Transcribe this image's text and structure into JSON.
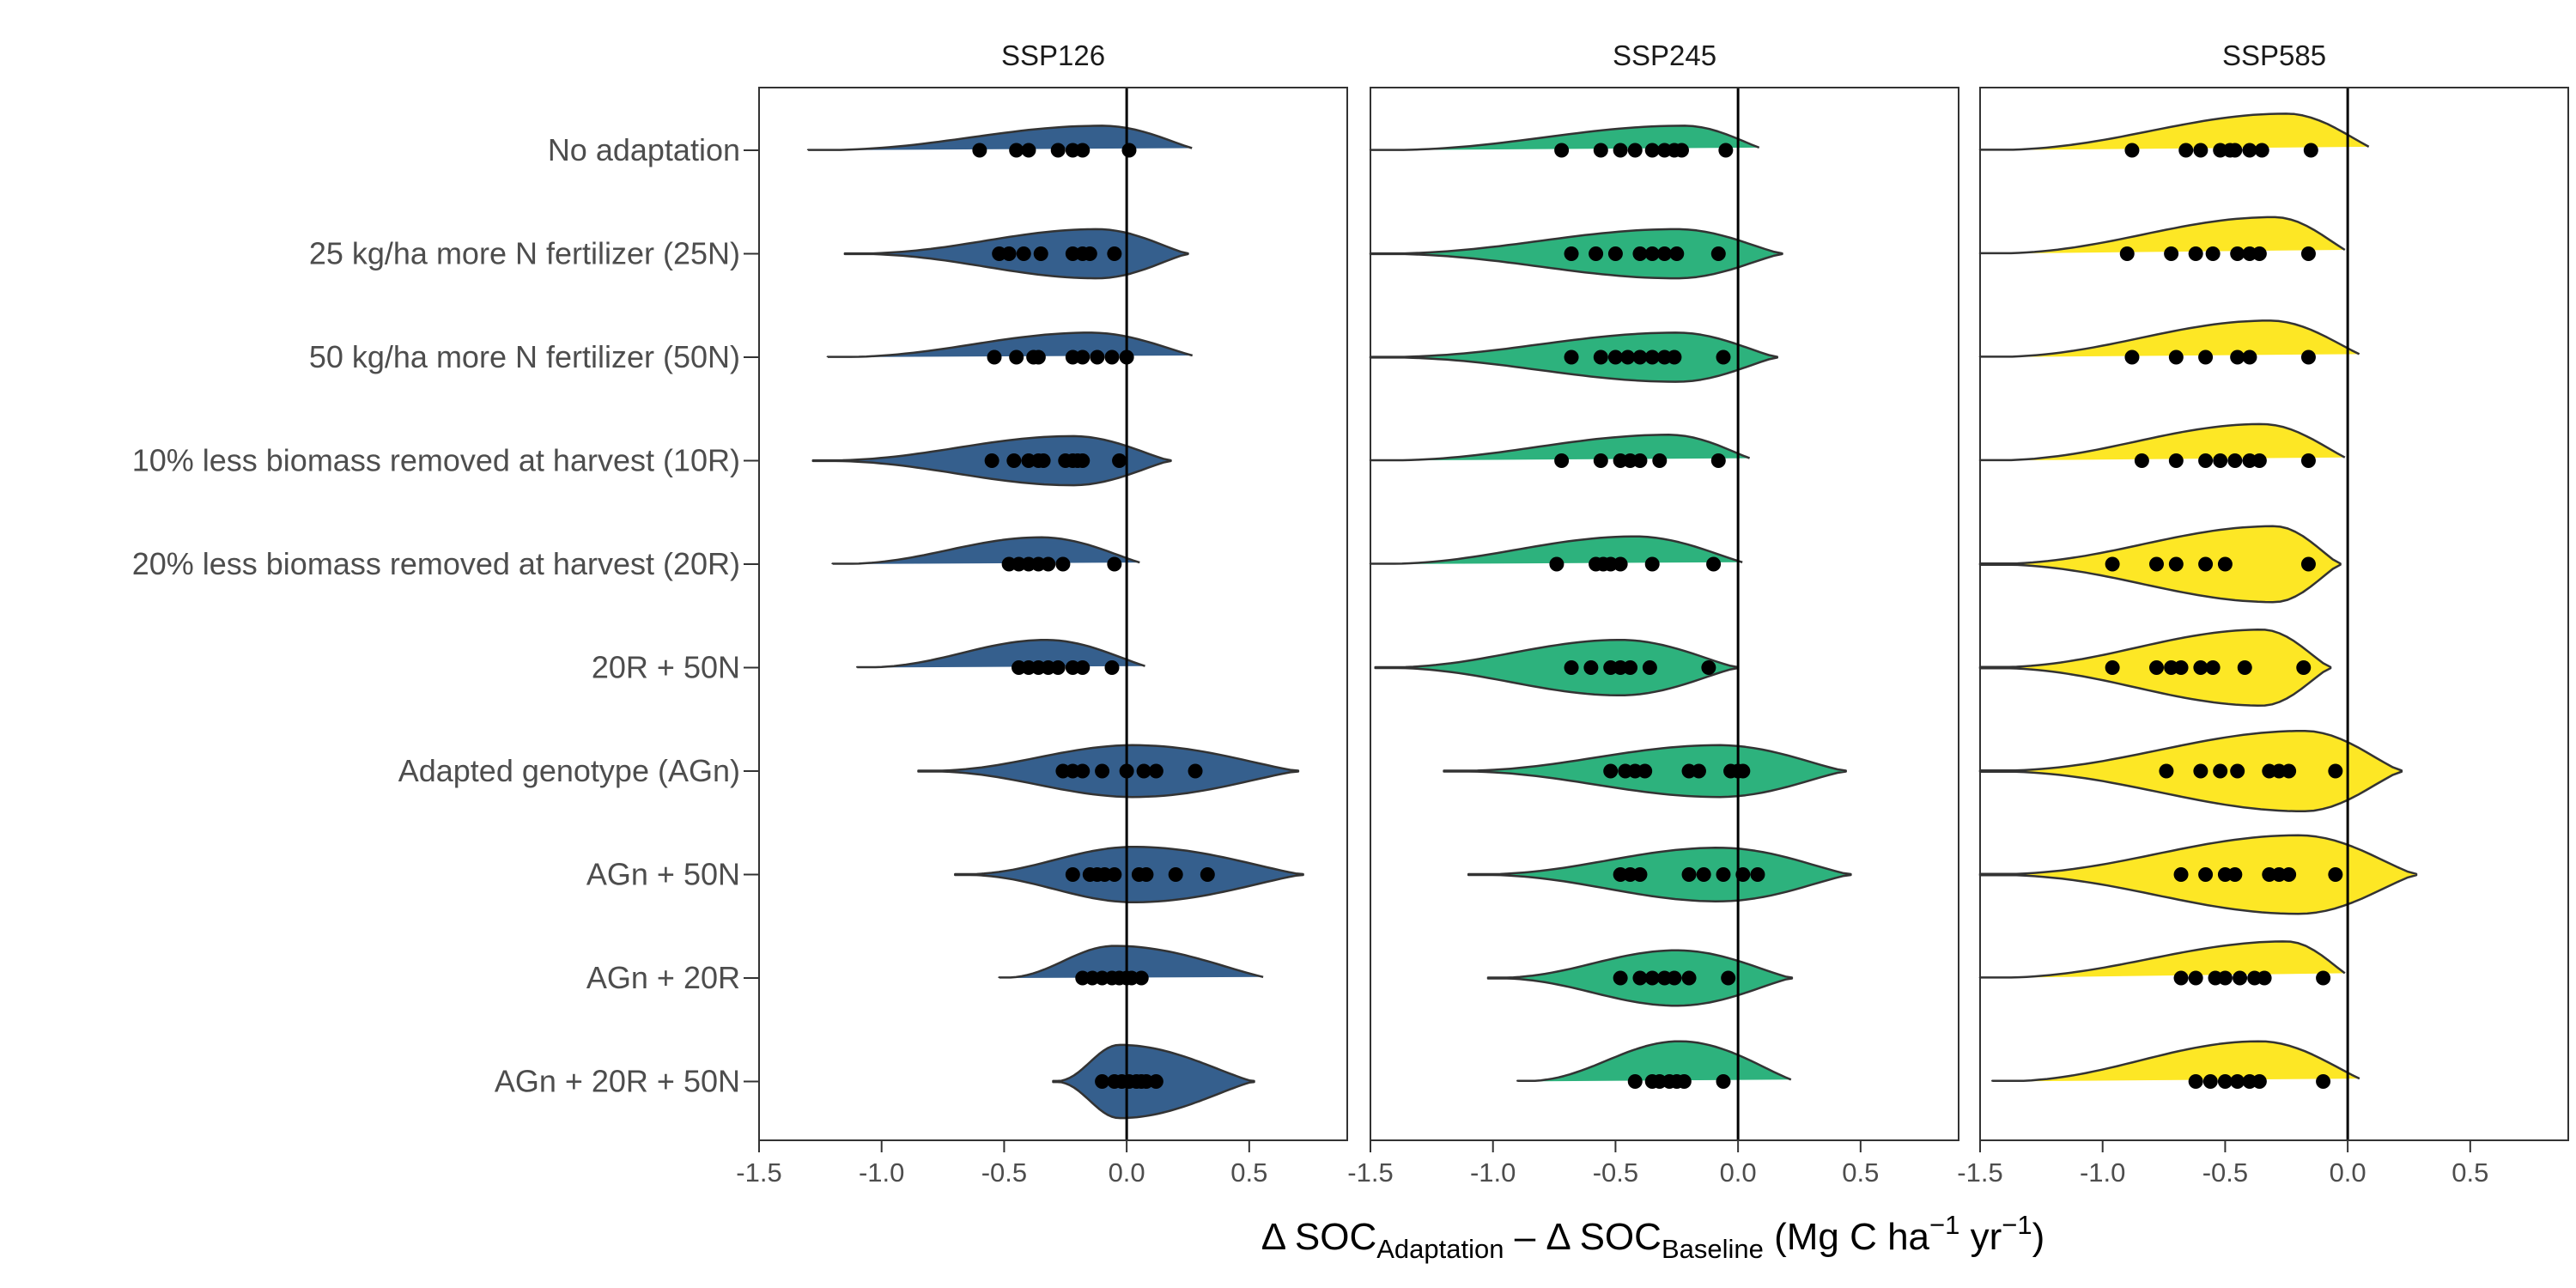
{
  "chart_data": {
    "type": "violin",
    "categories": [
      "No adaptation",
      "25 kg/ha more N fertilizer (25N)",
      "50 kg/ha more N fertilizer (50N)",
      "10% less biomass removed at harvest (10R)",
      "20% less biomass removed at harvest (20R)",
      "20R + 50N",
      "Adapted genotype (AGn)",
      "AGn + 50N",
      "AGn + 20R",
      "AGn + 20R + 50N"
    ],
    "xlim": [
      -1.5,
      0.9
    ],
    "x_ticks": [
      -1.5,
      -1.0,
      -0.5,
      0.0,
      0.5
    ],
    "x_tick_labels": [
      "-1.5",
      "-1.0",
      "-0.5",
      "0.0",
      "0.5"
    ],
    "reference_line_x": 0,
    "xlabel_parts": {
      "delta1": "Δ SOC",
      "sub1": "Adaptation",
      "minus": " – ",
      "delta2": "Δ SOC",
      "sub2": "Baseline",
      "units_open": " (Mg C ha",
      "sup1": "−1",
      "units_mid": " yr",
      "sup2": "−1",
      "units_close": ")"
    },
    "panels": [
      {
        "title": "SSP126",
        "color": "#355F8D",
        "violins": [
          {
            "min": -1.3,
            "max": 0.3,
            "mode": -0.1,
            "width": 0.55,
            "points": [
              -0.6,
              -0.45,
              -0.4,
              -0.28,
              -0.22,
              -0.18,
              0.01
            ]
          },
          {
            "min": -1.15,
            "max": 0.25,
            "mode": -0.12,
            "width": 0.55,
            "points": [
              -0.52,
              -0.48,
              -0.42,
              -0.35,
              -0.22,
              -0.18,
              -0.15,
              -0.05
            ]
          },
          {
            "min": -1.22,
            "max": 0.3,
            "mode": -0.15,
            "width": 0.55,
            "points": [
              -0.54,
              -0.45,
              -0.38,
              -0.36,
              -0.22,
              -0.18,
              -0.12,
              -0.06,
              0.0
            ]
          },
          {
            "min": -1.28,
            "max": 0.18,
            "mode": -0.22,
            "width": 0.55,
            "points": [
              -0.55,
              -0.46,
              -0.4,
              -0.36,
              -0.34,
              -0.25,
              -0.22,
              -0.2,
              -0.18,
              -0.03
            ]
          },
          {
            "min": -1.2,
            "max": 0.08,
            "mode": -0.35,
            "width": 0.6,
            "points": [
              -0.48,
              -0.44,
              -0.4,
              -0.36,
              -0.32,
              -0.26,
              -0.05
            ]
          },
          {
            "min": -1.1,
            "max": 0.1,
            "mode": -0.33,
            "width": 0.62,
            "points": [
              -0.44,
              -0.4,
              -0.36,
              -0.32,
              -0.28,
              -0.22,
              -0.18,
              -0.06
            ]
          },
          {
            "min": -0.85,
            "max": 0.7,
            "mode": 0.03,
            "width": 0.58,
            "points": [
              -0.26,
              -0.22,
              -0.18,
              -0.1,
              0.0,
              0.07,
              0.12,
              0.28
            ]
          },
          {
            "min": -0.7,
            "max": 0.72,
            "mode": 0.03,
            "width": 0.62,
            "points": [
              -0.22,
              -0.15,
              -0.12,
              -0.09,
              -0.05,
              0.05,
              0.08,
              0.2,
              0.33
            ]
          },
          {
            "min": -0.52,
            "max": 0.58,
            "mode": -0.05,
            "width": 0.72,
            "points": [
              -0.18,
              -0.14,
              -0.1,
              -0.06,
              -0.03,
              0.0,
              0.02,
              0.06
            ]
          },
          {
            "min": -0.3,
            "max": 0.52,
            "mode": -0.03,
            "width": 0.82,
            "points": [
              -0.1,
              -0.05,
              -0.02,
              0.01,
              0.04,
              0.06,
              0.08,
              0.12
            ]
          }
        ]
      },
      {
        "title": "SSP245",
        "color": "#2DB27D",
        "violins": [
          {
            "min": -1.5,
            "max": 0.12,
            "mode": -0.22,
            "width": 0.55,
            "points": [
              -0.72,
              -0.56,
              -0.48,
              -0.42,
              -0.35,
              -0.3,
              -0.26,
              -0.23,
              -0.05
            ]
          },
          {
            "min": -1.5,
            "max": 0.18,
            "mode": -0.25,
            "width": 0.55,
            "points": [
              -0.68,
              -0.58,
              -0.5,
              -0.4,
              -0.35,
              -0.3,
              -0.25,
              -0.08
            ]
          },
          {
            "min": -1.5,
            "max": 0.16,
            "mode": -0.25,
            "width": 0.55,
            "points": [
              -0.68,
              -0.56,
              -0.5,
              -0.45,
              -0.4,
              -0.35,
              -0.3,
              -0.26,
              -0.06
            ]
          },
          {
            "min": -1.5,
            "max": 0.08,
            "mode": -0.28,
            "width": 0.58,
            "points": [
              -0.72,
              -0.56,
              -0.48,
              -0.44,
              -0.4,
              -0.32,
              -0.08
            ]
          },
          {
            "min": -1.5,
            "max": 0.05,
            "mode": -0.42,
            "width": 0.62,
            "points": [
              -0.74,
              -0.58,
              -0.55,
              -0.52,
              -0.48,
              -0.35,
              -0.1
            ]
          },
          {
            "min": -1.48,
            "max": 0.0,
            "mode": -0.48,
            "width": 0.62,
            "points": [
              -0.68,
              -0.6,
              -0.52,
              -0.48,
              -0.44,
              -0.36,
              -0.12
            ]
          },
          {
            "min": -1.2,
            "max": 0.44,
            "mode": -0.08,
            "width": 0.58,
            "points": [
              -0.52,
              -0.46,
              -0.42,
              -0.38,
              -0.2,
              -0.16,
              -0.03,
              0.0,
              0.02
            ]
          },
          {
            "min": -1.1,
            "max": 0.46,
            "mode": -0.08,
            "width": 0.6,
            "points": [
              -0.48,
              -0.44,
              -0.4,
              -0.2,
              -0.14,
              -0.06,
              0.02,
              0.08
            ]
          },
          {
            "min": -1.02,
            "max": 0.22,
            "mode": -0.25,
            "width": 0.62,
            "points": [
              -0.48,
              -0.4,
              -0.35,
              -0.3,
              -0.26,
              -0.2,
              -0.04
            ]
          },
          {
            "min": -0.9,
            "max": 0.24,
            "mode": -0.24,
            "width": 0.9,
            "points": [
              -0.42,
              -0.35,
              -0.32,
              -0.28,
              -0.25,
              -0.22,
              -0.06
            ]
          }
        ]
      },
      {
        "title": "SSP585",
        "color": "#FDE725",
        "violins": [
          {
            "min": -1.5,
            "max": 0.12,
            "mode": -0.25,
            "width": 0.82,
            "points": [
              -0.88,
              -0.66,
              -0.6,
              -0.52,
              -0.48,
              -0.46,
              -0.4,
              -0.35,
              -0.15
            ]
          },
          {
            "min": -1.5,
            "max": 0.02,
            "mode": -0.3,
            "width": 0.82,
            "points": [
              -0.9,
              -0.72,
              -0.62,
              -0.55,
              -0.45,
              -0.4,
              -0.36,
              -0.16
            ]
          },
          {
            "min": -1.5,
            "max": 0.08,
            "mode": -0.32,
            "width": 0.82,
            "points": [
              -0.88,
              -0.7,
              -0.58,
              -0.45,
              -0.4,
              -0.16
            ]
          },
          {
            "min": -1.5,
            "max": 0.02,
            "mode": -0.35,
            "width": 0.82,
            "points": [
              -0.84,
              -0.7,
              -0.58,
              -0.52,
              -0.46,
              -0.4,
              -0.36,
              -0.16
            ]
          },
          {
            "min": -1.5,
            "max": -0.03,
            "mode": -0.3,
            "width": 0.85,
            "points": [
              -0.96,
              -0.78,
              -0.7,
              -0.58,
              -0.5,
              -0.16
            ]
          },
          {
            "min": -1.5,
            "max": -0.07,
            "mode": -0.35,
            "width": 0.85,
            "points": [
              -0.96,
              -0.78,
              -0.72,
              -0.68,
              -0.6,
              -0.55,
              -0.42,
              -0.18
            ]
          },
          {
            "min": -1.5,
            "max": 0.22,
            "mode": -0.18,
            "width": 0.9,
            "points": [
              -0.74,
              -0.6,
              -0.52,
              -0.45,
              -0.32,
              -0.28,
              -0.24,
              -0.05
            ]
          },
          {
            "min": -1.5,
            "max": 0.28,
            "mode": -0.2,
            "width": 0.88,
            "points": [
              -0.68,
              -0.58,
              -0.5,
              -0.46,
              -0.32,
              -0.28,
              -0.24,
              -0.05
            ]
          },
          {
            "min": -1.5,
            "max": 0.02,
            "mode": -0.25,
            "width": 0.82,
            "points": [
              -0.68,
              -0.62,
              -0.54,
              -0.5,
              -0.44,
              -0.38,
              -0.34,
              -0.1
            ]
          },
          {
            "min": -1.45,
            "max": 0.08,
            "mode": -0.36,
            "width": 0.9,
            "points": [
              -0.62,
              -0.56,
              -0.5,
              -0.45,
              -0.4,
              -0.36,
              -0.1
            ]
          }
        ]
      }
    ]
  }
}
